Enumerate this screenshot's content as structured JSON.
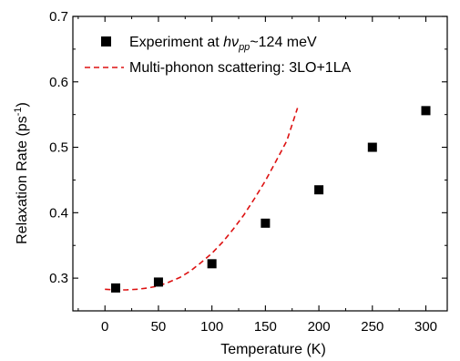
{
  "chart_data": {
    "type": "scatter",
    "title": "",
    "xlabel": "Temperature (K)",
    "ylabel": "Relaxation Rate (ps",
    "ylabel_sup": "-1",
    "ylabel_end": ")",
    "xlim": [
      -30,
      320
    ],
    "ylim": [
      0.25,
      0.7
    ],
    "x_ticks": [
      0,
      50,
      100,
      150,
      200,
      250,
      300
    ],
    "x_tick_labels": [
      "0",
      "50",
      "100",
      "150",
      "200",
      "250",
      "300"
    ],
    "y_ticks": [
      0.3,
      0.4,
      0.5,
      0.6,
      0.7
    ],
    "y_tick_labels": [
      "0.3",
      "0.4",
      "0.5",
      "0.6",
      "0.7"
    ],
    "grid": false,
    "legend_position": "top-left",
    "series": [
      {
        "kind": "scatter",
        "marker": "square",
        "color": "#000000",
        "legend": {
          "prefix": "Experiment at ",
          "symbol": "hν",
          "subscript": "pp",
          "suffix": "~124 meV"
        },
        "x": [
          10,
          50,
          100,
          150,
          200,
          250,
          300
        ],
        "y": [
          0.285,
          0.294,
          0.322,
          0.384,
          0.435,
          0.5,
          0.556
        ]
      },
      {
        "kind": "line",
        "style": "dashed",
        "color": "#dd1111",
        "legend": {
          "prefix": "Multi-phonon scattering: 3LO+1LA"
        },
        "x": [
          0,
          10,
          20,
          30,
          40,
          50,
          60,
          70,
          80,
          90,
          100,
          110,
          120,
          130,
          140,
          150,
          160,
          170,
          180
        ],
        "y": [
          0.283,
          0.282,
          0.282,
          0.283,
          0.285,
          0.288,
          0.294,
          0.301,
          0.311,
          0.324,
          0.338,
          0.355,
          0.375,
          0.397,
          0.422,
          0.449,
          0.479,
          0.51,
          0.56
        ]
      }
    ]
  }
}
